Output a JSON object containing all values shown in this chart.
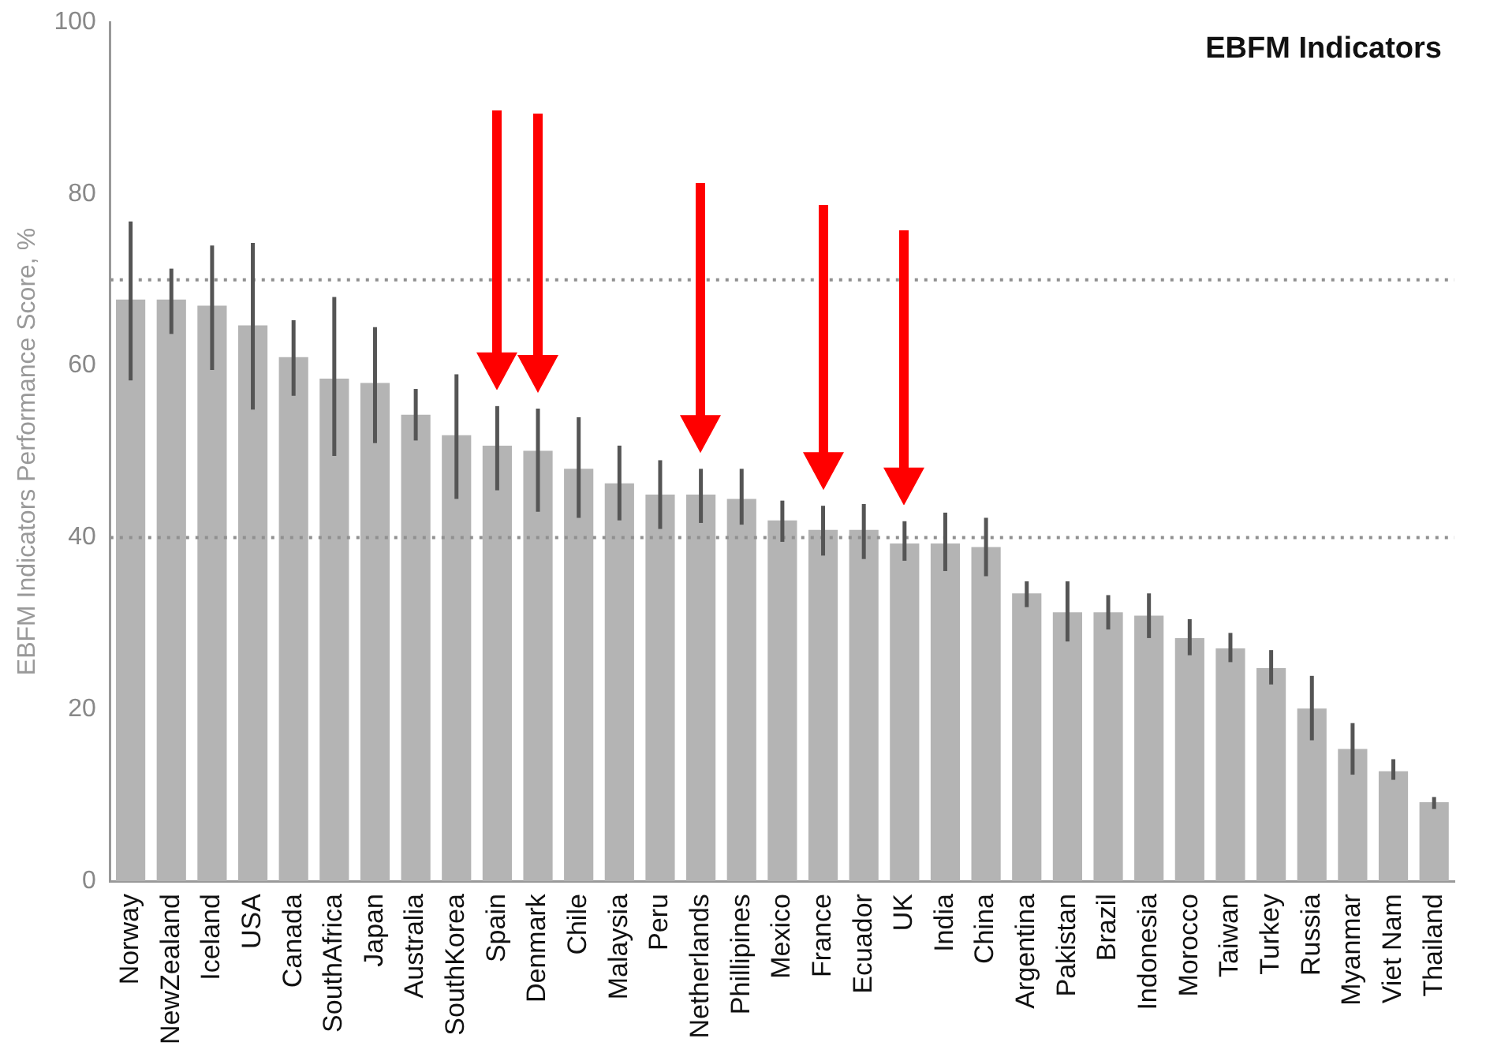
{
  "chart_data": {
    "type": "bar",
    "title": "EBFM Indicators",
    "ylabel": "EBFM Indicators Performance Score, %",
    "categories": [
      "Norway",
      "NewZealand",
      "Iceland",
      "USA",
      "Canada",
      "SouthAfrica",
      "Japan",
      "Australia",
      "SouthKorea",
      "Spain",
      "Denmark",
      "Chile",
      "Malaysia",
      "Peru",
      "Netherlands",
      "Phillipines",
      "Mexico",
      "France",
      "Ecuador",
      "UK",
      "India",
      "China",
      "Argentina",
      "Pakistan",
      "Brazil",
      "Indonesia",
      "Morocco",
      "Taiwan",
      "Turkey",
      "Russia",
      "Myanmar",
      "Viet Nam",
      "Thailand"
    ],
    "values": [
      67.7,
      67.7,
      67,
      64.7,
      61,
      58.5,
      58,
      54.3,
      51.9,
      50.7,
      50.1,
      48,
      46.3,
      45,
      45,
      44.5,
      42,
      40.9,
      40.9,
      39.3,
      39.3,
      38.9,
      33.5,
      31.3,
      31.3,
      30.9,
      28.3,
      27.1,
      24.8,
      20.1,
      15.4,
      12.8,
      9.2
    ],
    "errors": [
      [
        58.3,
        76.8
      ],
      [
        63.7,
        71.3
      ],
      [
        59.5,
        74
      ],
      [
        54.9,
        74.3
      ],
      [
        56.5,
        65.3
      ],
      [
        49.5,
        68
      ],
      [
        51,
        64.5
      ],
      [
        51.3,
        57.3
      ],
      [
        44.5,
        59
      ],
      [
        45.5,
        55.3
      ],
      [
        43,
        55
      ],
      [
        42.3,
        54
      ],
      [
        42,
        50.7
      ],
      [
        41,
        49
      ],
      [
        41.7,
        48
      ],
      [
        41.5,
        48
      ],
      [
        39.5,
        44.3
      ],
      [
        37.9,
        43.7
      ],
      [
        37.5,
        43.9
      ],
      [
        37.3,
        41.9
      ],
      [
        36.1,
        42.9
      ],
      [
        35.5,
        42.3
      ],
      [
        31.9,
        34.9
      ],
      [
        27.9,
        34.9
      ],
      [
        29.3,
        33.3
      ],
      [
        28.3,
        33.5
      ],
      [
        26.3,
        30.5
      ],
      [
        25.5,
        28.9
      ],
      [
        22.9,
        26.9
      ],
      [
        16.4,
        23.9
      ],
      [
        12.4,
        18.4
      ],
      [
        11.8,
        14.2
      ],
      [
        8.4,
        9.8
      ]
    ],
    "color": "#b4b4b4",
    "ylim": [
      0,
      100
    ],
    "yticks": [
      0,
      20,
      40,
      60,
      80,
      100
    ],
    "grid": false,
    "legend": false,
    "ref_lines": [
      {
        "axis": "y",
        "value": 70,
        "line_style": "dotted",
        "color": "#909090"
      },
      {
        "axis": "y",
        "value": 40,
        "line_style": "dotted",
        "color": "#909090"
      }
    ]
  }
}
